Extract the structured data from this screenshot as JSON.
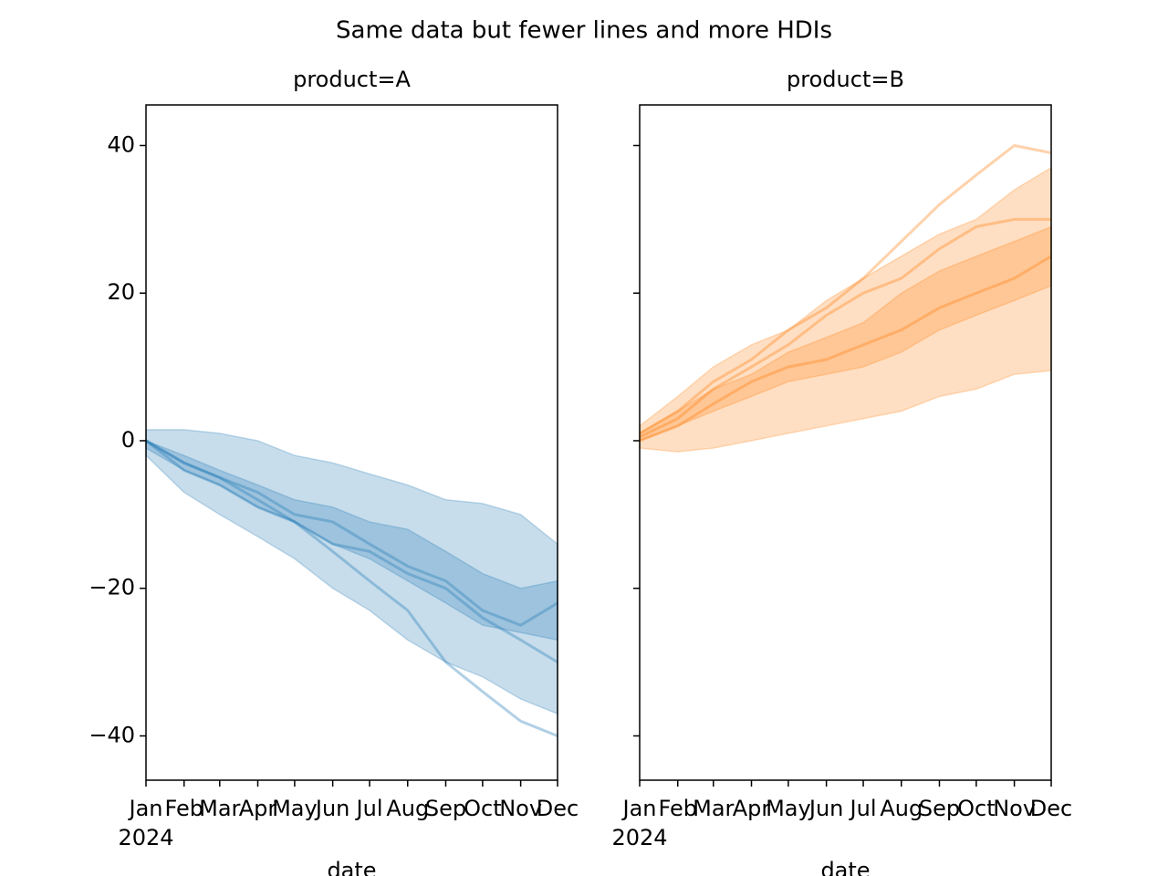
{
  "title": "Same data but fewer lines and more HDIs",
  "chart_data": [
    {
      "type": "line",
      "title": "product=A",
      "xlabel": "date",
      "x_year": "2024",
      "x": [
        "2024-01",
        "2024-02",
        "2024-03",
        "2024-04",
        "2024-05",
        "2024-06",
        "2024-07",
        "2024-08",
        "2024-09",
        "2024-10",
        "2024-11",
        "2024-12"
      ],
      "xlim": [
        "2024-01",
        "2024-12"
      ],
      "xticks": [
        {
          "value": "2024-01",
          "label": "Jan"
        },
        {
          "value": "2024-02",
          "label": "Feb"
        },
        {
          "value": "2024-03",
          "label": "Mar"
        },
        {
          "value": "2024-04",
          "label": "Apr"
        },
        {
          "value": "2024-05",
          "label": "May"
        },
        {
          "value": "2024-06",
          "label": "Jun"
        },
        {
          "value": "2024-07",
          "label": "Jul"
        },
        {
          "value": "2024-08",
          "label": "Aug"
        },
        {
          "value": "2024-09",
          "label": "Sep"
        },
        {
          "value": "2024-10",
          "label": "Oct"
        },
        {
          "value": "2024-11",
          "label": "Nov"
        },
        {
          "value": "2024-12",
          "label": "Dec"
        }
      ],
      "ylim": [
        -46,
        45.5
      ],
      "yticks": [
        {
          "value": -40,
          "label": "−40"
        },
        {
          "value": -20,
          "label": "−20"
        },
        0,
        20,
        40
      ],
      "color": "#1f77b4",
      "band_alpha": 0.25,
      "line_alpha": 0.35,
      "bands": [
        {
          "upper": [
            1.5,
            1.5,
            1,
            0,
            -2,
            -3,
            -4.5,
            -6,
            -8,
            -8.5,
            -10,
            -14
          ],
          "lower": [
            -2,
            -7,
            -10,
            -13,
            -16,
            -20,
            -23,
            -27,
            -30,
            -32,
            -35,
            -37
          ]
        },
        {
          "upper": [
            0,
            -2,
            -4,
            -6,
            -8,
            -9,
            -11,
            -12,
            -15,
            -18,
            -20,
            -19
          ],
          "lower": [
            -1,
            -4,
            -6,
            -9,
            -11,
            -14,
            -16,
            -19,
            -22,
            -25,
            -26,
            -27
          ]
        }
      ],
      "series": [
        {
          "values": [
            0,
            -4,
            -6,
            -9,
            -11,
            -15,
            -19,
            -23,
            -30,
            -34,
            -38,
            -40
          ]
        },
        {
          "values": [
            0,
            -3,
            -5,
            -8,
            -11,
            -14,
            -15,
            -18,
            -20,
            -24,
            -27,
            -30
          ]
        },
        {
          "values": [
            0,
            -3,
            -5,
            -7,
            -10,
            -11,
            -14,
            -17,
            -19,
            -23,
            -25,
            -22
          ]
        }
      ]
    },
    {
      "type": "line",
      "title": "product=B",
      "xlabel": "date",
      "x_year": "2024",
      "x": [
        "2024-01",
        "2024-02",
        "2024-03",
        "2024-04",
        "2024-05",
        "2024-06",
        "2024-07",
        "2024-08",
        "2024-09",
        "2024-10",
        "2024-11",
        "2024-12"
      ],
      "xlim": [
        "2024-01",
        "2024-12"
      ],
      "xticks": [
        {
          "value": "2024-01",
          "label": "Jan"
        },
        {
          "value": "2024-02",
          "label": "Feb"
        },
        {
          "value": "2024-03",
          "label": "Mar"
        },
        {
          "value": "2024-04",
          "label": "Apr"
        },
        {
          "value": "2024-05",
          "label": "May"
        },
        {
          "value": "2024-06",
          "label": "Jun"
        },
        {
          "value": "2024-07",
          "label": "Jul"
        },
        {
          "value": "2024-08",
          "label": "Aug"
        },
        {
          "value": "2024-09",
          "label": "Sep"
        },
        {
          "value": "2024-10",
          "label": "Oct"
        },
        {
          "value": "2024-11",
          "label": "Nov"
        },
        {
          "value": "2024-12",
          "label": "Dec"
        }
      ],
      "ylim": [
        -46,
        45.5
      ],
      "yticks": [
        -40,
        -20,
        0,
        20,
        40
      ],
      "color": "#ff7f0e",
      "band_alpha": 0.25,
      "line_alpha": 0.35,
      "bands": [
        {
          "upper": [
            2,
            6,
            10,
            13,
            15,
            19,
            22,
            25,
            28,
            30,
            34,
            37
          ],
          "lower": [
            -1,
            -1.5,
            -1,
            0,
            1,
            2,
            3,
            4,
            6,
            7,
            9,
            9.5
          ]
        },
        {
          "upper": [
            1,
            4,
            7,
            9,
            12,
            14,
            16,
            20,
            23,
            25,
            27,
            29
          ],
          "lower": [
            0,
            2,
            4,
            6,
            8,
            9,
            10,
            12,
            15,
            17,
            19,
            21
          ]
        }
      ],
      "series": [
        {
          "values": [
            1,
            4,
            8,
            11,
            15,
            18,
            22,
            27,
            32,
            36,
            40,
            39
          ]
        },
        {
          "values": [
            0.5,
            3,
            7,
            10,
            13,
            17,
            20,
            22,
            26,
            29,
            30,
            30
          ]
        },
        {
          "values": [
            0,
            2,
            5,
            8,
            10,
            11,
            13,
            15,
            18,
            20,
            22,
            25
          ]
        }
      ]
    }
  ]
}
